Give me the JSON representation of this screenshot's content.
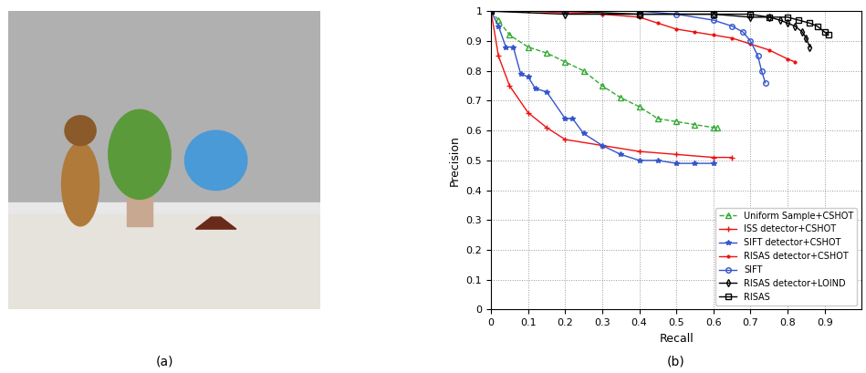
{
  "chart_data": {
    "type": "line",
    "x_label": "Recall",
    "y_label": "Precision",
    "xlim": [
      0,
      1
    ],
    "ylim": [
      0,
      1
    ],
    "xticks": [
      0,
      0.1,
      0.2,
      0.3,
      0.4,
      0.5,
      0.6,
      0.7,
      0.8,
      0.9
    ],
    "yticks": [
      0,
      0.1,
      0.2,
      0.3,
      0.4,
      0.5,
      0.6,
      0.7,
      0.8,
      0.9,
      1
    ],
    "grid": true,
    "legend": "lower right",
    "series": [
      {
        "name": "Uniform Sample+CSHOT",
        "color": "#33aa33",
        "marker": "triangle",
        "line_style": "dashed",
        "x": [
          0,
          0.02,
          0.05,
          0.1,
          0.15,
          0.2,
          0.25,
          0.3,
          0.35,
          0.4,
          0.45,
          0.5,
          0.55,
          0.6,
          0.61
        ],
        "values": [
          1,
          0.97,
          0.92,
          0.88,
          0.86,
          0.83,
          0.8,
          0.75,
          0.71,
          0.68,
          0.64,
          0.63,
          0.62,
          0.61,
          0.61
        ]
      },
      {
        "name": "ISS detector+CSHOT",
        "color": "#ee1111",
        "marker": "plus",
        "line_style": "solid",
        "x": [
          0,
          0.02,
          0.05,
          0.1,
          0.15,
          0.2,
          0.3,
          0.4,
          0.5,
          0.6,
          0.65
        ],
        "values": [
          1,
          0.85,
          0.75,
          0.66,
          0.61,
          0.57,
          0.55,
          0.53,
          0.52,
          0.51,
          0.51
        ]
      },
      {
        "name": "SIFT detector+CSHOT",
        "color": "#3355cc",
        "marker": "star",
        "line_style": "solid",
        "x": [
          0,
          0.02,
          0.04,
          0.06,
          0.08,
          0.1,
          0.12,
          0.15,
          0.2,
          0.22,
          0.25,
          0.3,
          0.35,
          0.4,
          0.45,
          0.5,
          0.55,
          0.6
        ],
        "values": [
          1,
          0.95,
          0.88,
          0.88,
          0.79,
          0.78,
          0.74,
          0.73,
          0.64,
          0.64,
          0.59,
          0.55,
          0.52,
          0.5,
          0.5,
          0.49,
          0.49,
          0.49
        ]
      },
      {
        "name": "RISAS detector+CSHOT",
        "color": "#ee1111",
        "marker": "dot",
        "line_style": "solid",
        "x": [
          0,
          0.1,
          0.3,
          0.4,
          0.45,
          0.5,
          0.55,
          0.6,
          0.65,
          0.7,
          0.75,
          0.8,
          0.82
        ],
        "values": [
          1,
          1,
          0.99,
          0.98,
          0.96,
          0.94,
          0.93,
          0.92,
          0.91,
          0.89,
          0.87,
          0.84,
          0.83
        ]
      },
      {
        "name": "SIFT",
        "color": "#3355cc",
        "marker": "circle",
        "line_style": "solid",
        "x": [
          0,
          0.2,
          0.4,
          0.5,
          0.6,
          0.65,
          0.68,
          0.7,
          0.72,
          0.73,
          0.74
        ],
        "values": [
          1,
          1,
          1,
          0.99,
          0.97,
          0.95,
          0.93,
          0.9,
          0.85,
          0.8,
          0.76
        ]
      },
      {
        "name": "RISAS detector+LOIND",
        "color": "#000000",
        "marker": "diamond",
        "line_style": "solid",
        "x": [
          0,
          0.2,
          0.4,
          0.6,
          0.7,
          0.75,
          0.78,
          0.8,
          0.82,
          0.84,
          0.85,
          0.86
        ],
        "values": [
          1,
          0.99,
          0.99,
          0.99,
          0.98,
          0.98,
          0.97,
          0.96,
          0.95,
          0.93,
          0.91,
          0.88
        ]
      },
      {
        "name": "RISAS",
        "color": "#000000",
        "marker": "square",
        "line_style": "solid",
        "x": [
          0,
          0.2,
          0.4,
          0.6,
          0.7,
          0.75,
          0.8,
          0.83,
          0.86,
          0.88,
          0.9,
          0.91
        ],
        "values": [
          1,
          1,
          0.99,
          0.99,
          0.99,
          0.98,
          0.98,
          0.97,
          0.96,
          0.95,
          0.93,
          0.92
        ]
      }
    ]
  },
  "panels": {
    "a": {
      "label": "(a)"
    },
    "b": {
      "label": "(b)"
    }
  }
}
